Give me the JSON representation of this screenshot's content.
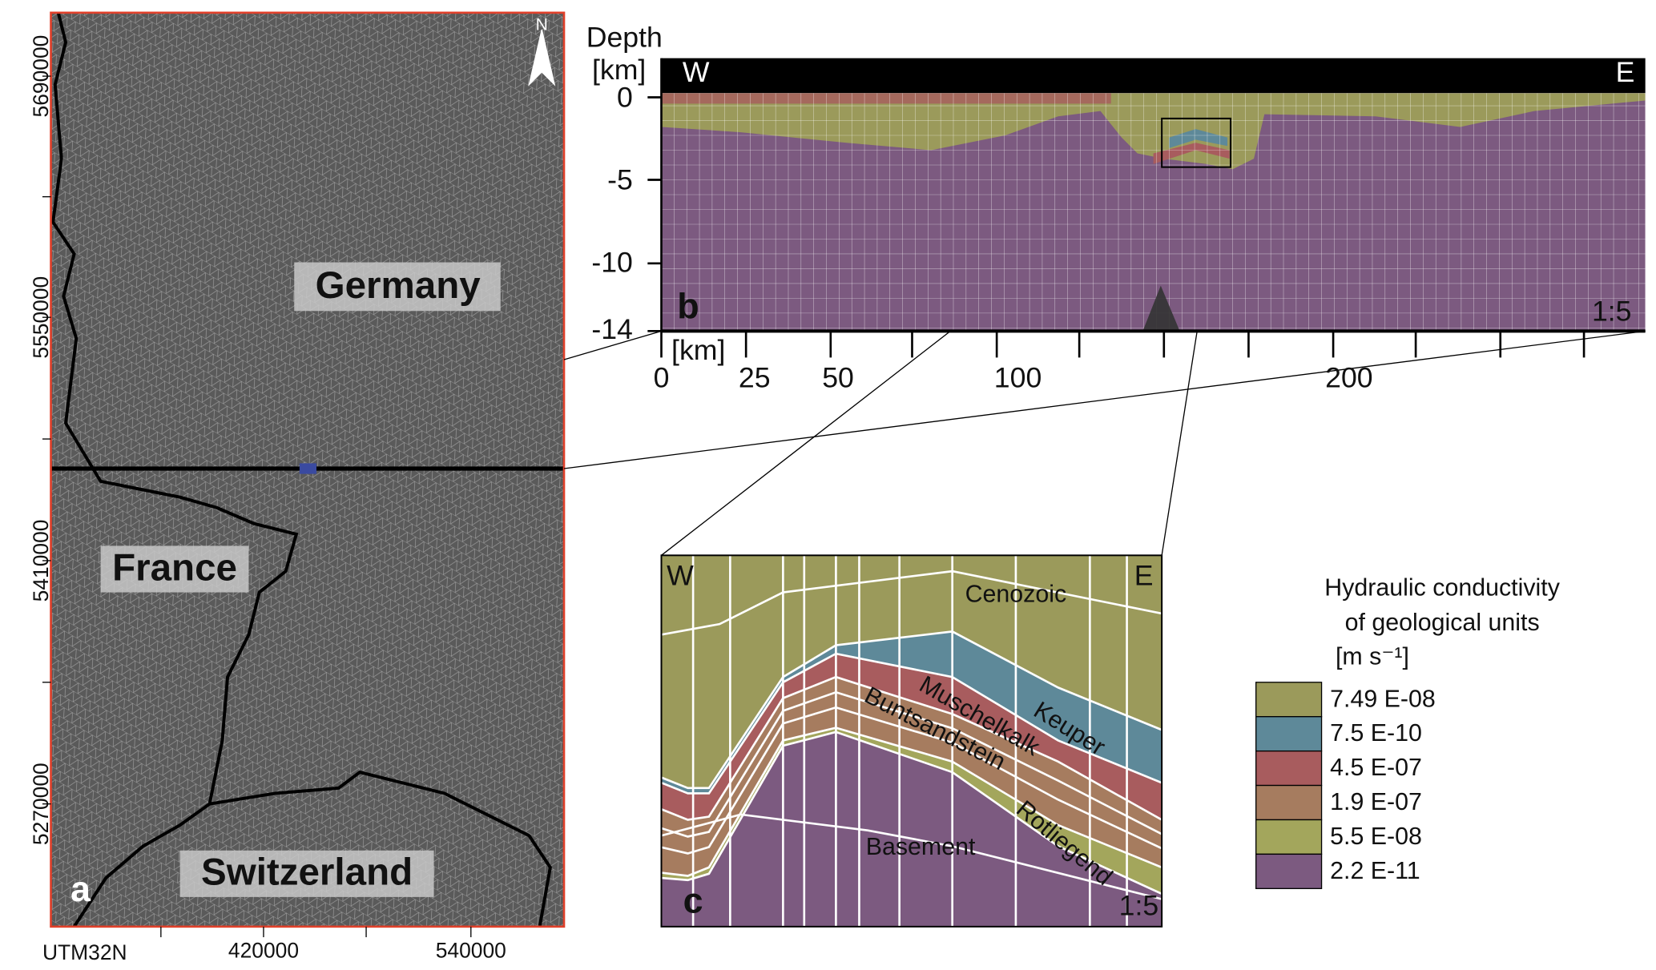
{
  "panel_a": {
    "label": "a",
    "north": "N",
    "countries": [
      "Germany",
      "France",
      "Switzerland"
    ],
    "y_ticks": [
      "5690000",
      "5550000",
      "5410000",
      "5270000"
    ],
    "x_ticks": [
      "420000",
      "540000"
    ],
    "crs": "UTM32N"
  },
  "panel_b": {
    "label": "b",
    "y_title": "Depth",
    "y_unit": "[km]",
    "west": "W",
    "east": "E",
    "scale": "1:5",
    "y_ticks": [
      "0",
      "-5",
      "-10",
      "-14"
    ],
    "x_unit": "[km]",
    "x_ticks": [
      "0",
      "25",
      "50",
      "100",
      "200"
    ]
  },
  "panel_c": {
    "label": "c",
    "west": "W",
    "east": "E",
    "scale": "1:5",
    "units": [
      "Cenozoic",
      "Keuper",
      "Muschelkalk",
      "Buntsandstein",
      "Rotliegend",
      "Basement"
    ]
  },
  "legend": {
    "title_lines": [
      "Hydraulic conductivity",
      "of geological units"
    ],
    "unit": "[m s⁻¹]",
    "items": [
      {
        "label": "7.49 E-08",
        "color": "#9b9a5b"
      },
      {
        "label": "7.5 E-10",
        "color": "#5e8999"
      },
      {
        "label": "4.5 E-07",
        "color": "#a85c5e"
      },
      {
        "label": "1.9 E-07",
        "color": "#a67c5f"
      },
      {
        "label": "5.5 E-08",
        "color": "#a3a65c"
      },
      {
        "label": "2.2 E-11",
        "color": "#7c5a80"
      }
    ]
  }
}
